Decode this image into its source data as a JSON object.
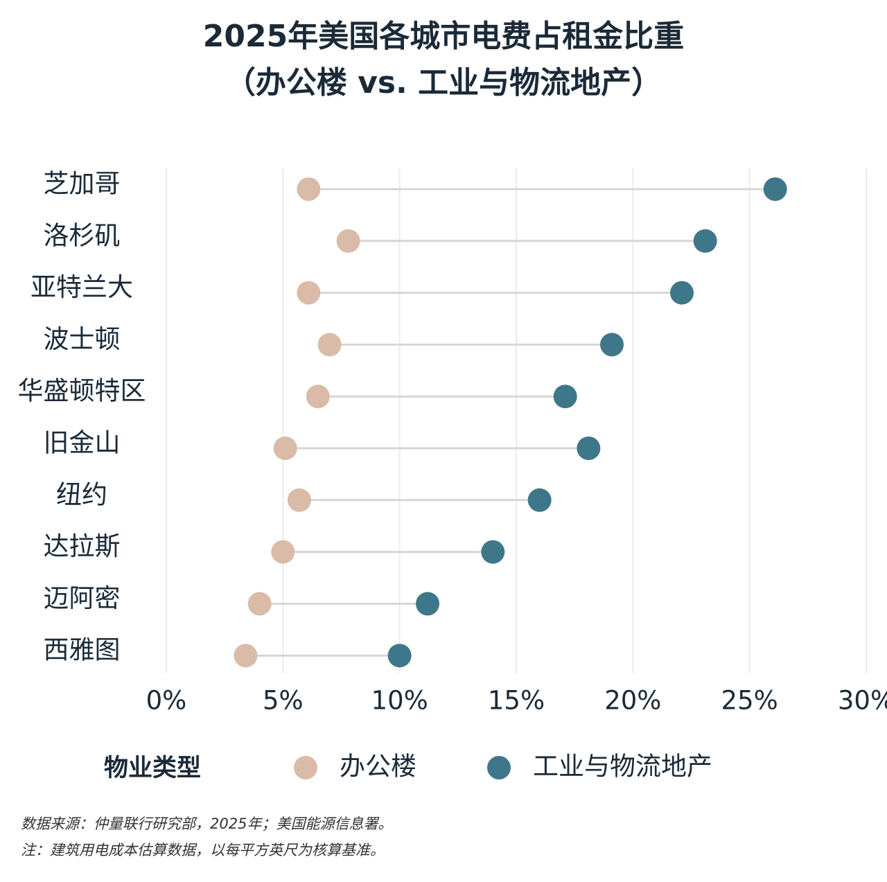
{
  "chart_data": {
    "type": "dumbbell",
    "title": "2025年美国各城市电费占租金比重",
    "subtitle": "（办公楼 vs. 工业与物流地产）",
    "categories": [
      "芝加哥",
      "洛杉矶",
      "亚特兰大",
      "波士顿",
      "华盛顿特区",
      "旧金山",
      "纽约",
      "达拉斯",
      "迈阿密",
      "西雅图"
    ],
    "series": [
      {
        "name": "办公楼",
        "color": "#d9bba8",
        "values": [
          6.1,
          7.8,
          6.1,
          7.0,
          6.5,
          5.1,
          5.7,
          5.0,
          4.0,
          3.4
        ]
      },
      {
        "name": "工业与物流地产",
        "color": "#3e7789",
        "values": [
          26.1,
          23.1,
          22.1,
          19.1,
          17.1,
          18.1,
          16.0,
          14.0,
          11.2,
          10.0
        ]
      }
    ],
    "xlim": [
      0,
      30
    ],
    "xticks": [
      {
        "value": 0,
        "label": "0%"
      },
      {
        "value": 5,
        "label": "5%"
      },
      {
        "value": 10,
        "label": "10%"
      },
      {
        "value": 15,
        "label": "15%"
      },
      {
        "value": 20,
        "label": "20%"
      },
      {
        "value": 25,
        "label": "25%"
      },
      {
        "value": 30,
        "label": "30%"
      }
    ],
    "grid": true,
    "legend_title": "物业类型",
    "legend_position": "bottom",
    "source": "数据来源：仲量联行研究部，2025年；美国能源信息署。",
    "note": "注：建筑用电成本估算数据，以每平方英尺为核算基准。"
  }
}
